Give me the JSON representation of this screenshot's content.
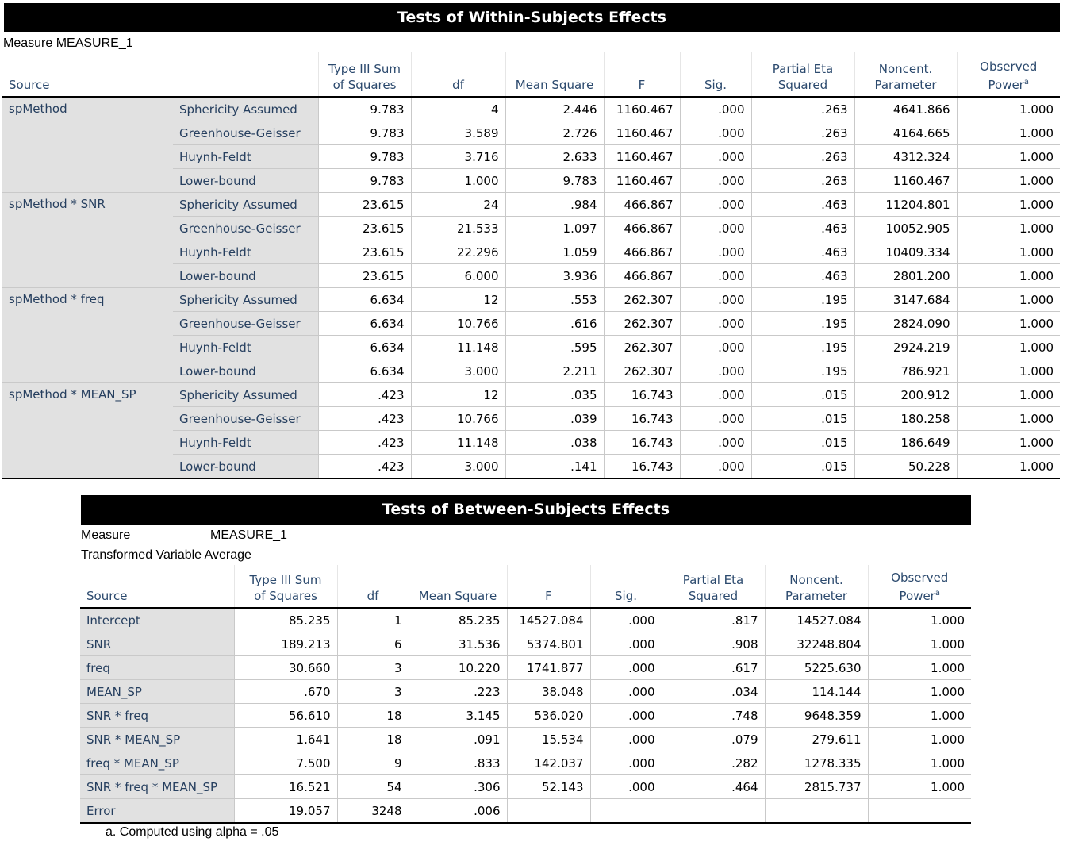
{
  "within": {
    "title": "Tests of Within-Subjects Effects",
    "measure": "Measure MEASURE_1",
    "headers": {
      "source": "Source",
      "ss": [
        "Type III Sum",
        "of Squares"
      ],
      "df": "df",
      "ms": "Mean Square",
      "f": "F",
      "sig": "Sig.",
      "eta": [
        "Partial Eta",
        "Squared"
      ],
      "nc": [
        "Noncent.",
        "Parameter"
      ],
      "power": "Observed",
      "power2": "Power",
      "power_note": "a"
    },
    "groups": [
      {
        "source": "spMethod",
        "rows": [
          {
            "corr": "Sphericity Assumed",
            "ss": "9.783",
            "df": "4",
            "ms": "2.446",
            "f": "1160.467",
            "sig": ".000",
            "eta": ".263",
            "nc": "4641.866",
            "power": "1.000"
          },
          {
            "corr": "Greenhouse-Geisser",
            "ss": "9.783",
            "df": "3.589",
            "ms": "2.726",
            "f": "1160.467",
            "sig": ".000",
            "eta": ".263",
            "nc": "4164.665",
            "power": "1.000"
          },
          {
            "corr": "Huynh-Feldt",
            "ss": "9.783",
            "df": "3.716",
            "ms": "2.633",
            "f": "1160.467",
            "sig": ".000",
            "eta": ".263",
            "nc": "4312.324",
            "power": "1.000"
          },
          {
            "corr": "Lower-bound",
            "ss": "9.783",
            "df": "1.000",
            "ms": "9.783",
            "f": "1160.467",
            "sig": ".000",
            "eta": ".263",
            "nc": "1160.467",
            "power": "1.000"
          }
        ]
      },
      {
        "source": "spMethod * SNR",
        "rows": [
          {
            "corr": "Sphericity Assumed",
            "ss": "23.615",
            "df": "24",
            "ms": ".984",
            "f": "466.867",
            "sig": ".000",
            "eta": ".463",
            "nc": "11204.801",
            "power": "1.000"
          },
          {
            "corr": "Greenhouse-Geisser",
            "ss": "23.615",
            "df": "21.533",
            "ms": "1.097",
            "f": "466.867",
            "sig": ".000",
            "eta": ".463",
            "nc": "10052.905",
            "power": "1.000"
          },
          {
            "corr": "Huynh-Feldt",
            "ss": "23.615",
            "df": "22.296",
            "ms": "1.059",
            "f": "466.867",
            "sig": ".000",
            "eta": ".463",
            "nc": "10409.334",
            "power": "1.000"
          },
          {
            "corr": "Lower-bound",
            "ss": "23.615",
            "df": "6.000",
            "ms": "3.936",
            "f": "466.867",
            "sig": ".000",
            "eta": ".463",
            "nc": "2801.200",
            "power": "1.000"
          }
        ]
      },
      {
        "source": "spMethod * freq",
        "rows": [
          {
            "corr": "Sphericity Assumed",
            "ss": "6.634",
            "df": "12",
            "ms": ".553",
            "f": "262.307",
            "sig": ".000",
            "eta": ".195",
            "nc": "3147.684",
            "power": "1.000"
          },
          {
            "corr": "Greenhouse-Geisser",
            "ss": "6.634",
            "df": "10.766",
            "ms": ".616",
            "f": "262.307",
            "sig": ".000",
            "eta": ".195",
            "nc": "2824.090",
            "power": "1.000"
          },
          {
            "corr": "Huynh-Feldt",
            "ss": "6.634",
            "df": "11.148",
            "ms": ".595",
            "f": "262.307",
            "sig": ".000",
            "eta": ".195",
            "nc": "2924.219",
            "power": "1.000"
          },
          {
            "corr": "Lower-bound",
            "ss": "6.634",
            "df": "3.000",
            "ms": "2.211",
            "f": "262.307",
            "sig": ".000",
            "eta": ".195",
            "nc": "786.921",
            "power": "1.000"
          }
        ]
      },
      {
        "source": "spMethod * MEAN_SP",
        "rows": [
          {
            "corr": "Sphericity Assumed",
            "ss": ".423",
            "df": "12",
            "ms": ".035",
            "f": "16.743",
            "sig": ".000",
            "eta": ".015",
            "nc": "200.912",
            "power": "1.000"
          },
          {
            "corr": "Greenhouse-Geisser",
            "ss": ".423",
            "df": "10.766",
            "ms": ".039",
            "f": "16.743",
            "sig": ".000",
            "eta": ".015",
            "nc": "180.258",
            "power": "1.000"
          },
          {
            "corr": "Huynh-Feldt",
            "ss": ".423",
            "df": "11.148",
            "ms": ".038",
            "f": "16.743",
            "sig": ".000",
            "eta": ".015",
            "nc": "186.649",
            "power": "1.000"
          },
          {
            "corr": "Lower-bound",
            "ss": ".423",
            "df": "3.000",
            "ms": ".141",
            "f": "16.743",
            "sig": ".000",
            "eta": ".015",
            "nc": "50.228",
            "power": "1.000"
          }
        ]
      }
    ]
  },
  "between": {
    "title": "Tests of Between-Subjects Effects",
    "measure_label": "Measure",
    "measure_value": "MEASURE_1",
    "transformed": "Transformed Variable Average",
    "rows": [
      {
        "source": "Intercept",
        "ss": "85.235",
        "df": "1",
        "ms": "85.235",
        "f": "14527.084",
        "sig": ".000",
        "eta": ".817",
        "nc": "14527.084",
        "power": "1.000"
      },
      {
        "source": "SNR",
        "ss": "189.213",
        "df": "6",
        "ms": "31.536",
        "f": "5374.801",
        "sig": ".000",
        "eta": ".908",
        "nc": "32248.804",
        "power": "1.000"
      },
      {
        "source": "freq",
        "ss": "30.660",
        "df": "3",
        "ms": "10.220",
        "f": "1741.877",
        "sig": ".000",
        "eta": ".617",
        "nc": "5225.630",
        "power": "1.000"
      },
      {
        "source": "MEAN_SP",
        "ss": ".670",
        "df": "3",
        "ms": ".223",
        "f": "38.048",
        "sig": ".000",
        "eta": ".034",
        "nc": "114.144",
        "power": "1.000"
      },
      {
        "source": "SNR * freq",
        "ss": "56.610",
        "df": "18",
        "ms": "3.145",
        "f": "536.020",
        "sig": ".000",
        "eta": ".748",
        "nc": "9648.359",
        "power": "1.000"
      },
      {
        "source": "SNR * MEAN_SP",
        "ss": "1.641",
        "df": "18",
        "ms": ".091",
        "f": "15.534",
        "sig": ".000",
        "eta": ".079",
        "nc": "279.611",
        "power": "1.000"
      },
      {
        "source": "freq * MEAN_SP",
        "ss": "7.500",
        "df": "9",
        "ms": ".833",
        "f": "142.037",
        "sig": ".000",
        "eta": ".282",
        "nc": "1278.335",
        "power": "1.000"
      },
      {
        "source": "SNR * freq * MEAN_SP",
        "ss": "16.521",
        "df": "54",
        "ms": ".306",
        "f": "52.143",
        "sig": ".000",
        "eta": ".464",
        "nc": "2815.737",
        "power": "1.000"
      },
      {
        "source": "Error",
        "ss": "19.057",
        "df": "3248",
        "ms": ".006",
        "f": "",
        "sig": "",
        "eta": "",
        "nc": "",
        "power": ""
      }
    ]
  },
  "footnote": "a. Computed using alpha = .05"
}
